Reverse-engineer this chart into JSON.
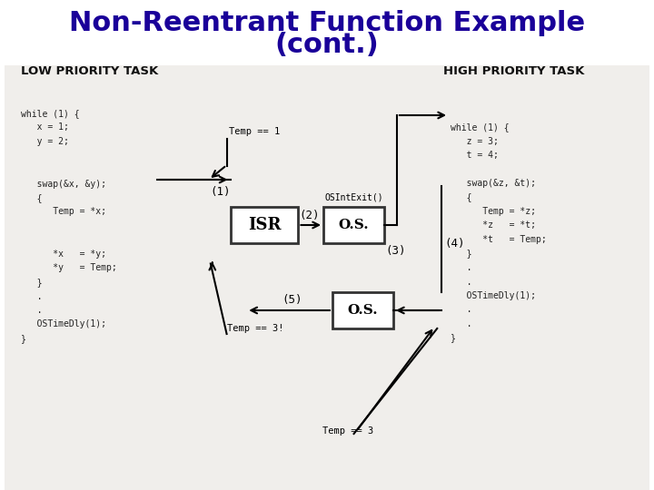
{
  "title_line1": "Non-Reentrant Function Example",
  "title_line2": "(cont.)",
  "title_color": "#1a0099",
  "title_fontsize": 22,
  "bg_color": "#ffffff",
  "content_bg": "#f0eeeb",
  "low_priority_label": "LOW PRIORITY TASK",
  "high_priority_label": "HIGH PRIORITY TASK",
  "label_fontsize": 9.5,
  "label_color": "#111111",
  "code_fontsize": 7.0,
  "code_color": "#222222",
  "isr_label": "ISR",
  "os_label_top": "O.S.",
  "os_label_bot": "O.S.",
  "code_left": [
    "while (1) {",
    "   x = 1;",
    "   y = 2;",
    "",
    "",
    "   swap(&x, &y);",
    "   {",
    "      Temp = *x;",
    "",
    "",
    "      *x   = *y;",
    "      *y   = Temp;",
    "   }",
    "   .",
    "   .",
    "   OSTimeDly(1);",
    "}"
  ],
  "code_right": [
    "while (1) {",
    "   z = 3;",
    "   t = 4;",
    "",
    "   swap(&z, &t);",
    "   {",
    "      Temp = *z;",
    "      *z   = *t;",
    "      *t   = Temp;",
    "   }",
    "   .",
    "   .",
    "   OSTimeDly(1);",
    "   .",
    "   .",
    "}"
  ],
  "ann_temp1": "Temp == 1",
  "ann_temp31": "Temp == 3!",
  "ann_temp3": "Temp == 3",
  "ann_osIntexit": "OSIntExit()",
  "ann_num1": "(1)",
  "ann_num2": "(2)",
  "ann_num3": "(3)",
  "ann_num4": "(4)",
  "ann_num5": "(5)"
}
